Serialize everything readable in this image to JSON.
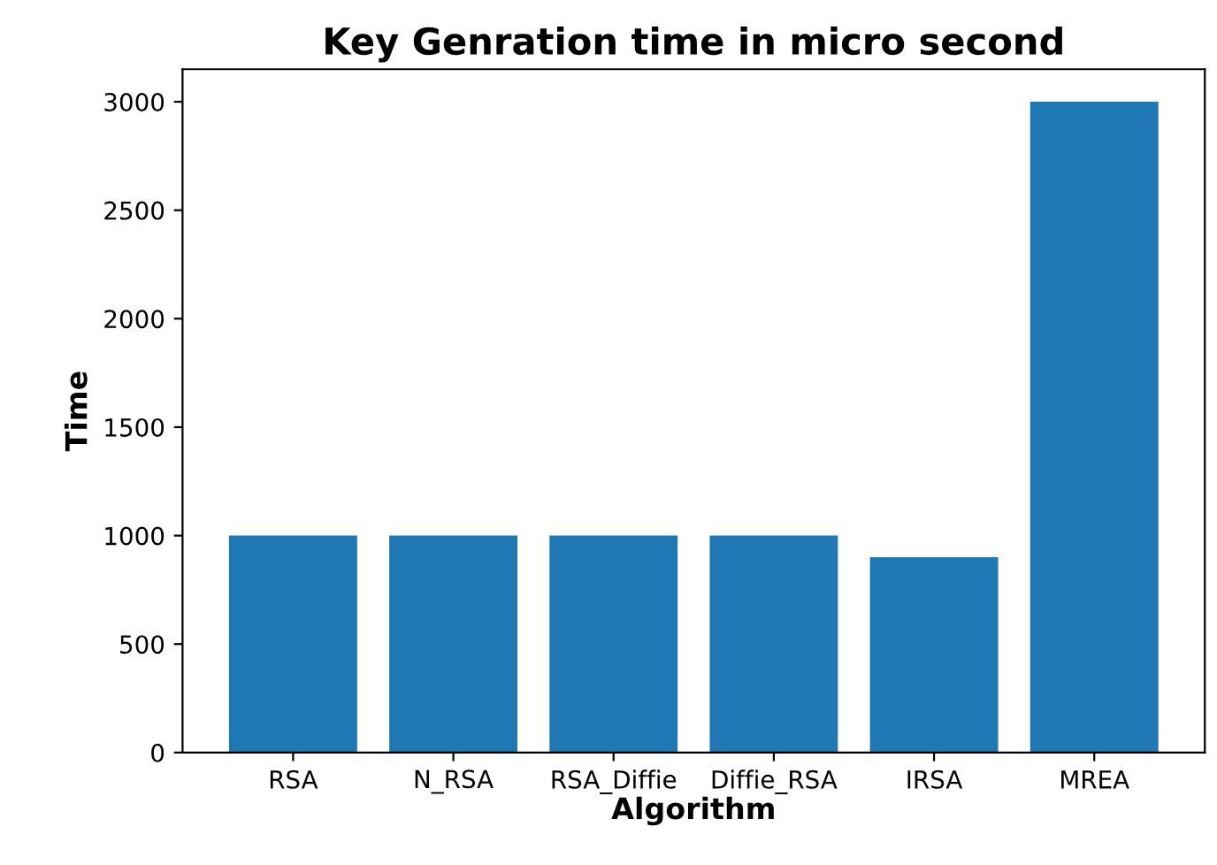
{
  "chart_data": {
    "type": "bar",
    "title": "Key Genration time in micro second",
    "xlabel": "Algorithm",
    "ylabel": "Time",
    "categories": [
      "RSA",
      "N_RSA",
      "RSA_Diffie",
      "Diffie_RSA",
      "IRSA",
      "MREA"
    ],
    "values": [
      1000,
      1000,
      1000,
      1000,
      900,
      3000
    ],
    "color": "#1f77b4",
    "ylim": [
      0,
      3150
    ],
    "yticks": [
      0,
      500,
      1000,
      1500,
      2000,
      2500,
      3000
    ],
    "grid": false,
    "legend": false
  }
}
